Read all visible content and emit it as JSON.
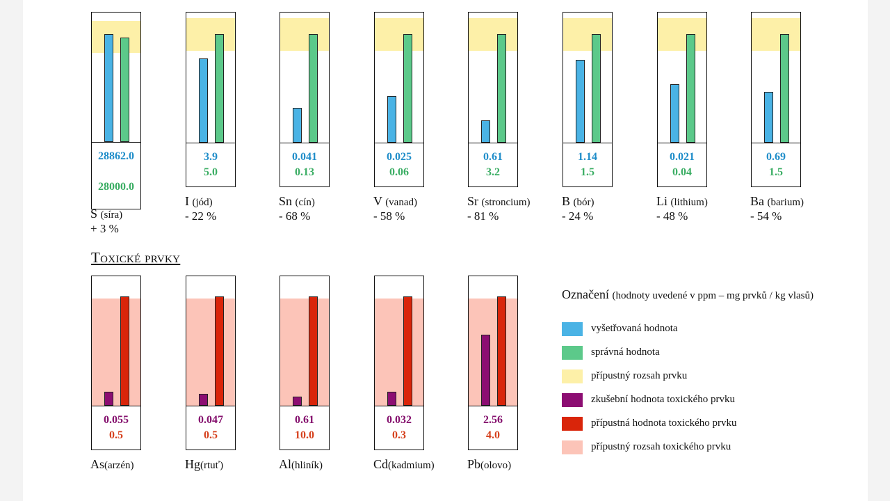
{
  "colors": {
    "examined": "#4ab3e5",
    "correct": "#5cc98a",
    "permissible_range": "#fdf0a8",
    "toxic_examined": "#8c0d72",
    "toxic_permissible": "#d9250a",
    "toxic_range": "#fcc4b8",
    "examined_text": "#1f8dc9",
    "correct_text": "#3aad63",
    "toxic_examined_text": "#84106d",
    "toxic_permissible_text": "#d6401c"
  },
  "section_title": "Toxické prvky",
  "legend": {
    "title": "Označení",
    "subtitle": "(hodnoty uvedené v ppm – mg prvků / kg vlasů)",
    "items": [
      {
        "label": "vyšetřovaná hodnota",
        "color": "#4ab3e5"
      },
      {
        "label": "správná hodnota",
        "color": "#5cc98a"
      },
      {
        "label": "přípustný rozsah prvku",
        "color": "#fdf0a8"
      },
      {
        "label": "zkušební hodnota toxického prvku",
        "color": "#8c0d72"
      },
      {
        "label": "přípustná hodnota toxického prvku",
        "color": "#d9250a"
      },
      {
        "label": "přípustný rozsah toxického prvku",
        "color": "#fcc4b8"
      }
    ]
  },
  "chart_data": [
    {
      "type": "bar",
      "title": "",
      "series": [
        {
          "name": "vyšetřovaná hodnota",
          "values": [
            28862.0,
            3.9,
            0.041,
            0.025,
            0.61,
            1.14,
            0.021,
            0.69
          ]
        },
        {
          "name": "správná hodnota",
          "values": [
            28000.0,
            5.0,
            0.13,
            0.06,
            3.2,
            1.5,
            0.04,
            1.5
          ]
        }
      ],
      "elements": [
        {
          "symbol": "S",
          "name": "(síra)",
          "examined": "28862.0",
          "correct": "28000.0",
          "diff": "+ 3 %",
          "examined_fraction": 0.84,
          "correct_fraction": 0.81,
          "range_fraction": [
            0.69,
            0.94
          ]
        },
        {
          "symbol": "I",
          "name": "(jód)",
          "examined": "3.9",
          "correct": "5.0",
          "diff": "- 22 %",
          "examined_fraction": 0.65,
          "correct_fraction": 0.84,
          "range_fraction": [
            0.71,
            0.96
          ]
        },
        {
          "symbol": "Sn",
          "name": "(cín)",
          "examined": "0.041",
          "correct": "0.13",
          "diff": "- 68 %",
          "examined_fraction": 0.27,
          "correct_fraction": 0.84,
          "range_fraction": [
            0.71,
            0.96
          ]
        },
        {
          "symbol": "V",
          "name": "(vanad)",
          "examined": "0.025",
          "correct": "0.06",
          "diff": "- 58 %",
          "examined_fraction": 0.36,
          "correct_fraction": 0.84,
          "range_fraction": [
            0.71,
            0.96
          ]
        },
        {
          "symbol": "Sr",
          "name": "(stroncium)",
          "examined": "0.61",
          "correct": "3.2",
          "diff": "- 81 %",
          "examined_fraction": 0.17,
          "correct_fraction": 0.84,
          "range_fraction": [
            0.71,
            0.96
          ]
        },
        {
          "symbol": "B",
          "name": "(bór)",
          "examined": "1.14",
          "correct": "1.5",
          "diff": "- 24 %",
          "examined_fraction": 0.64,
          "correct_fraction": 0.84,
          "range_fraction": [
            0.71,
            0.96
          ]
        },
        {
          "symbol": "Li",
          "name": "(lithium)",
          "examined": "0.021",
          "correct": "0.04",
          "diff": "- 48 %",
          "examined_fraction": 0.45,
          "correct_fraction": 0.84,
          "range_fraction": [
            0.71,
            0.96
          ]
        },
        {
          "symbol": "Ba",
          "name": "(barium)",
          "examined": "0.69",
          "correct": "1.5",
          "diff": "- 54 %",
          "examined_fraction": 0.39,
          "correct_fraction": 0.84,
          "range_fraction": [
            0.71,
            0.96
          ]
        }
      ]
    },
    {
      "type": "bar",
      "title": "Toxické prvky",
      "series": [
        {
          "name": "zkušební hodnota toxického prvku",
          "values": [
            0.055,
            0.047,
            0.61,
            0.032,
            2.56
          ]
        },
        {
          "name": "přípustná hodnota toxického prvku",
          "values": [
            0.5,
            0.5,
            10.0,
            0.3,
            4.0
          ]
        }
      ],
      "elements": [
        {
          "symbol": "As",
          "name": "(arzén)",
          "examined": "0.055",
          "permissible": "0.5",
          "examined_fraction": 0.11,
          "permissible_fraction": 0.85,
          "range_fraction": [
            0.0,
            0.83
          ]
        },
        {
          "symbol": "Hg",
          "name": "(rtuť)",
          "examined": "0.047",
          "permissible": "0.5",
          "examined_fraction": 0.09,
          "permissible_fraction": 0.85,
          "range_fraction": [
            0.0,
            0.83
          ]
        },
        {
          "symbol": "Al",
          "name": "(hliník)",
          "examined": "0.61",
          "permissible": "10.0",
          "examined_fraction": 0.07,
          "permissible_fraction": 0.85,
          "range_fraction": [
            0.0,
            0.83
          ]
        },
        {
          "symbol": "Cd",
          "name": "(kadmium)",
          "examined": "0.032",
          "permissible": "0.3",
          "examined_fraction": 0.11,
          "permissible_fraction": 0.85,
          "range_fraction": [
            0.0,
            0.83
          ]
        },
        {
          "symbol": "Pb",
          "name": "(olovo)",
          "examined": "2.56",
          "permissible": "4.0",
          "examined_fraction": 0.55,
          "permissible_fraction": 0.85,
          "range_fraction": [
            0.0,
            0.83
          ]
        }
      ]
    }
  ]
}
